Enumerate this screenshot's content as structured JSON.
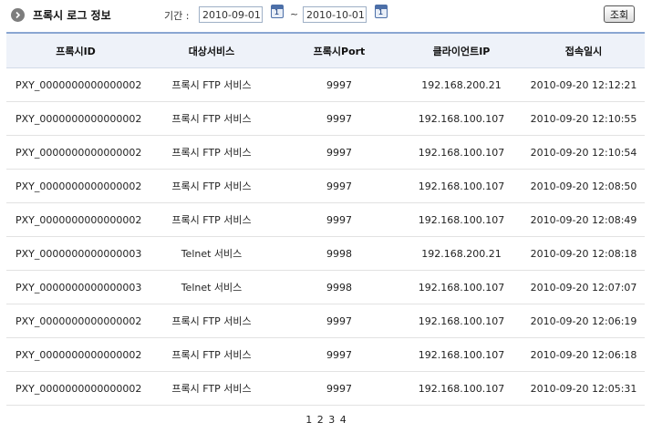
{
  "header": {
    "title": "프록시 로그 정보",
    "period_label": "기간 :",
    "date_from": "2010-09-01",
    "date_to": "2010-10-01",
    "range_separator": "~",
    "calendar_glyph": "1",
    "search_label": "조회"
  },
  "table": {
    "columns": [
      "프록시ID",
      "대상서비스",
      "프록시Port",
      "클라이언트IP",
      "접속일시"
    ],
    "rows": [
      [
        "PXY_0000000000000002",
        "프록시 FTP 서비스",
        "9997",
        "192.168.200.21",
        "2010-09-20 12:12:21"
      ],
      [
        "PXY_0000000000000002",
        "프록시 FTP 서비스",
        "9997",
        "192.168.100.107",
        "2010-09-20 12:10:55"
      ],
      [
        "PXY_0000000000000002",
        "프록시 FTP 서비스",
        "9997",
        "192.168.100.107",
        "2010-09-20 12:10:54"
      ],
      [
        "PXY_0000000000000002",
        "프록시 FTP 서비스",
        "9997",
        "192.168.100.107",
        "2010-09-20 12:08:50"
      ],
      [
        "PXY_0000000000000002",
        "프록시 FTP 서비스",
        "9997",
        "192.168.100.107",
        "2010-09-20 12:08:49"
      ],
      [
        "PXY_0000000000000003",
        "Telnet 서비스",
        "9998",
        "192.168.200.21",
        "2010-09-20 12:08:18"
      ],
      [
        "PXY_0000000000000003",
        "Telnet 서비스",
        "9998",
        "192.168.100.107",
        "2010-09-20 12:07:07"
      ],
      [
        "PXY_0000000000000002",
        "프록시 FTP 서비스",
        "9997",
        "192.168.100.107",
        "2010-09-20 12:06:19"
      ],
      [
        "PXY_0000000000000002",
        "프록시 FTP 서비스",
        "9997",
        "192.168.100.107",
        "2010-09-20 12:06:18"
      ],
      [
        "PXY_0000000000000002",
        "프록시 FTP 서비스",
        "9997",
        "192.168.100.107",
        "2010-09-20 12:05:31"
      ]
    ]
  },
  "pagination": {
    "pages": [
      "1",
      "2",
      "3",
      "4"
    ]
  },
  "icons": {
    "title": "circle-arrow-right-icon",
    "calendar": "calendar-icon"
  },
  "colors": {
    "header_bg": "#eef2f9",
    "header_border": "#8aa6d2",
    "row_border": "#e2e2e2"
  }
}
